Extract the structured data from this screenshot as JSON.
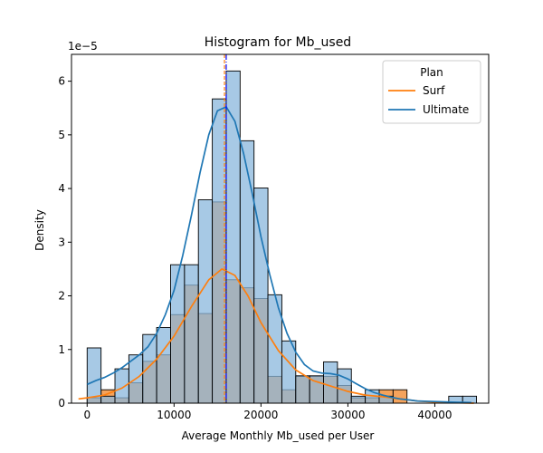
{
  "chart_data": {
    "type": "bar",
    "title": "Histogram for Mb_used",
    "xlabel": "Average Monthly Mb_used per User",
    "ylabel": "Density",
    "y_offset_text": "1e−5",
    "xlim": [
      -1800,
      46200
    ],
    "ylim": [
      0,
      6.5
    ],
    "x_ticks": [
      0,
      10000,
      20000,
      30000,
      40000
    ],
    "x_tick_labels": [
      "0",
      "10000",
      "20000",
      "30000",
      "40000"
    ],
    "y_ticks": [
      0,
      1,
      2,
      3,
      4,
      5,
      6
    ],
    "y_tick_labels": [
      "0",
      "1",
      "2",
      "3",
      "4",
      "5",
      "6"
    ],
    "grid": false,
    "bin_edges": [
      0,
      1600,
      3200,
      4800,
      6400,
      8000,
      9600,
      11200,
      12800,
      14400,
      16000,
      17600,
      19200,
      20800,
      22400,
      24000,
      25600,
      27200,
      28800,
      30400,
      32000,
      33600,
      35200,
      36800,
      38400,
      40000,
      41600,
      43200,
      44800
    ],
    "legend": {
      "title": "Plan",
      "position": "top-right",
      "entries": [
        "Surf",
        "Ultimate"
      ]
    },
    "series": [
      {
        "name": "Surf",
        "color": "#ff7f0e",
        "fill": "#f5a35c",
        "values": [
          0.1,
          0.25,
          0.1,
          0.38,
          0.78,
          0.9,
          1.65,
          2.2,
          1.67,
          3.75,
          2.3,
          2.15,
          1.95,
          0.5,
          0.25,
          0.5,
          0.5,
          0.5,
          0.33,
          0.1,
          0.1,
          0.25,
          0.25,
          0,
          0,
          0,
          0,
          0
        ],
        "kde": [
          [
            -1000,
            0.08
          ],
          [
            0,
            0.1
          ],
          [
            2000,
            0.15
          ],
          [
            4000,
            0.28
          ],
          [
            6000,
            0.5
          ],
          [
            8000,
            0.82
          ],
          [
            10000,
            1.25
          ],
          [
            12000,
            1.8
          ],
          [
            14000,
            2.3
          ],
          [
            15500,
            2.5
          ],
          [
            17000,
            2.38
          ],
          [
            18500,
            2.0
          ],
          [
            20000,
            1.5
          ],
          [
            22000,
            0.98
          ],
          [
            24000,
            0.62
          ],
          [
            26000,
            0.42
          ],
          [
            28000,
            0.32
          ],
          [
            30000,
            0.22
          ],
          [
            32000,
            0.15
          ],
          [
            34000,
            0.12
          ],
          [
            36000,
            0.08
          ],
          [
            38000,
            0.04
          ],
          [
            40000,
            0.02
          ],
          [
            42000,
            0.01
          ],
          [
            44500,
            0.0
          ]
        ]
      },
      {
        "name": "Ultimate",
        "color": "#1f77b4",
        "fill": "#8ab7dc",
        "values": [
          1.03,
          0.13,
          0.64,
          0.9,
          1.28,
          1.41,
          2.58,
          2.58,
          3.79,
          5.67,
          6.19,
          4.89,
          4.01,
          2.02,
          1.16,
          0.51,
          0.51,
          0.77,
          0.64,
          0.13,
          0.25,
          0.13,
          0,
          0,
          0,
          0,
          0.13,
          0.13
        ],
        "kde": [
          [
            0,
            0.35
          ],
          [
            1000,
            0.42
          ],
          [
            2000,
            0.48
          ],
          [
            3000,
            0.56
          ],
          [
            4000,
            0.66
          ],
          [
            5000,
            0.78
          ],
          [
            6000,
            0.9
          ],
          [
            7000,
            1.05
          ],
          [
            8000,
            1.3
          ],
          [
            9000,
            1.65
          ],
          [
            10000,
            2.1
          ],
          [
            11000,
            2.75
          ],
          [
            12000,
            3.5
          ],
          [
            13000,
            4.3
          ],
          [
            14000,
            5.0
          ],
          [
            15000,
            5.45
          ],
          [
            16000,
            5.52
          ],
          [
            17000,
            5.25
          ],
          [
            18000,
            4.65
          ],
          [
            19000,
            3.9
          ],
          [
            20000,
            3.1
          ],
          [
            21000,
            2.4
          ],
          [
            22000,
            1.78
          ],
          [
            23000,
            1.3
          ],
          [
            24000,
            0.95
          ],
          [
            25000,
            0.72
          ],
          [
            26000,
            0.6
          ],
          [
            27000,
            0.56
          ],
          [
            28000,
            0.55
          ],
          [
            29000,
            0.52
          ],
          [
            30000,
            0.45
          ],
          [
            31000,
            0.36
          ],
          [
            32000,
            0.27
          ],
          [
            33000,
            0.2
          ],
          [
            34000,
            0.15
          ],
          [
            35000,
            0.11
          ],
          [
            36000,
            0.08
          ],
          [
            37000,
            0.06
          ],
          [
            38000,
            0.04
          ],
          [
            40000,
            0.03
          ],
          [
            42000,
            0.02
          ],
          [
            44200,
            0.01
          ]
        ]
      }
    ],
    "reference_lines": [
      {
        "x": 15800,
        "color": "#ff7f0e",
        "style": "dashed"
      },
      {
        "x": 16000,
        "color": "#0000ff",
        "style": "dashdot"
      }
    ]
  }
}
